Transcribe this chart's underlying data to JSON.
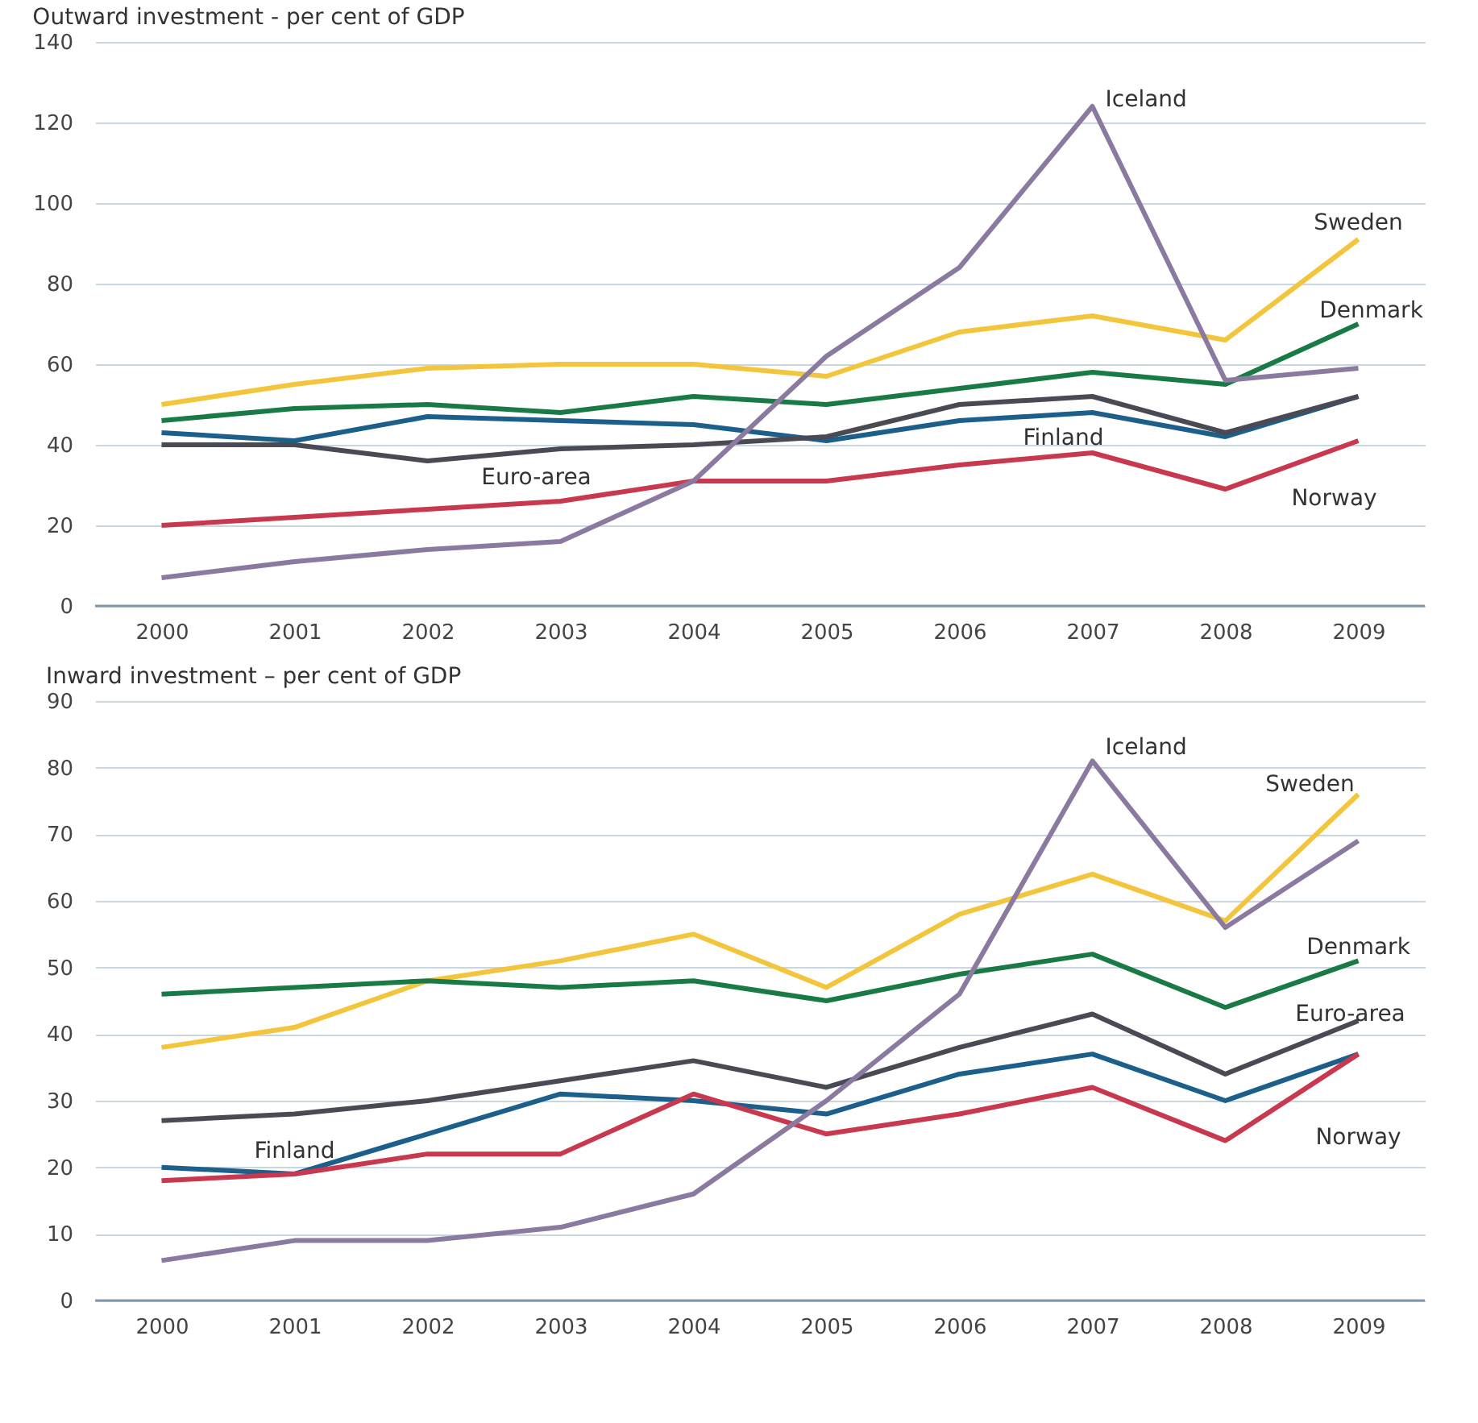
{
  "chart_data": [
    {
      "type": "line",
      "title": "Outward investment - per cent of GDP",
      "categories": [
        "2000",
        "2001",
        "2002",
        "2003",
        "2004",
        "2005",
        "2006",
        "2007",
        "2008",
        "2009"
      ],
      "series": [
        {
          "name": "Sweden",
          "color": "#f2c53d",
          "values": [
            50,
            55,
            59,
            60,
            60,
            57,
            68,
            72,
            66,
            91
          ]
        },
        {
          "name": "Denmark",
          "color": "#1a7a45",
          "values": [
            46,
            49,
            50,
            48,
            52,
            50,
            54,
            58,
            55,
            70
          ]
        },
        {
          "name": "Finland",
          "color": "#1b5f8a",
          "values": [
            43,
            41,
            47,
            46,
            45,
            41,
            46,
            48,
            42,
            52
          ]
        },
        {
          "name": "Euro-area",
          "color": "#4a4a55",
          "values": [
            40,
            40,
            36,
            39,
            40,
            42,
            50,
            52,
            43,
            52
          ]
        },
        {
          "name": "Norway",
          "color": "#c8384f",
          "values": [
            20,
            22,
            24,
            26,
            31,
            31,
            35,
            38,
            29,
            41
          ]
        },
        {
          "name": "Iceland",
          "color": "#8a7aa0",
          "values": [
            7,
            11,
            14,
            16,
            31,
            62,
            84,
            124,
            56,
            59
          ]
        }
      ],
      "ylim": [
        0,
        140
      ],
      "yticks": [
        0,
        20,
        40,
        60,
        80,
        100,
        120,
        140
      ],
      "grid": "y",
      "legend": false
    },
    {
      "type": "line",
      "title": "Inward investment – per cent of GDP",
      "categories": [
        "2000",
        "2001",
        "2002",
        "2003",
        "2004",
        "2005",
        "2006",
        "2007",
        "2008",
        "2009"
      ],
      "series": [
        {
          "name": "Sweden",
          "color": "#f2c53d",
          "values": [
            38,
            41,
            48,
            51,
            55,
            47,
            58,
            64,
            57,
            76
          ]
        },
        {
          "name": "Denmark",
          "color": "#1a7a45",
          "values": [
            46,
            47,
            48,
            47,
            48,
            45,
            49,
            52,
            44,
            51
          ]
        },
        {
          "name": "Finland",
          "color": "#1b5f8a",
          "values": [
            20,
            19,
            25,
            31,
            30,
            28,
            34,
            37,
            30,
            37
          ]
        },
        {
          "name": "Euro-area",
          "color": "#4a4a55",
          "values": [
            27,
            28,
            30,
            33,
            36,
            32,
            38,
            43,
            34,
            42
          ]
        },
        {
          "name": "Norway",
          "color": "#c8384f",
          "values": [
            18,
            19,
            22,
            22,
            31,
            25,
            28,
            32,
            24,
            37
          ]
        },
        {
          "name": "Iceland",
          "color": "#8a7aa0",
          "values": [
            6,
            9,
            9,
            11,
            16,
            30,
            46,
            81,
            56,
            69
          ]
        }
      ],
      "ylim": [
        0,
        90
      ],
      "yticks": [
        0,
        10,
        20,
        30,
        40,
        50,
        60,
        70,
        80,
        90
      ],
      "grid": "y",
      "legend": false
    }
  ]
}
